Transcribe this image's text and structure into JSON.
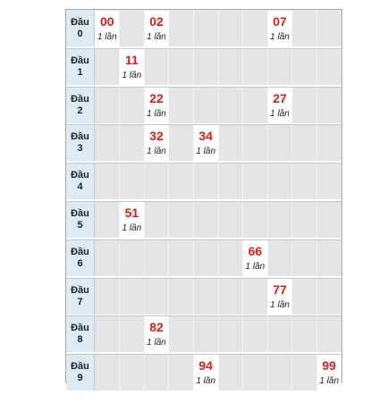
{
  "heads": [
    {
      "label": "Đầu",
      "digit": "0"
    },
    {
      "label": "Đầu",
      "digit": "1"
    },
    {
      "label": "Đầu",
      "digit": "2"
    },
    {
      "label": "Đầu",
      "digit": "3"
    },
    {
      "label": "Đầu",
      "digit": "4"
    },
    {
      "label": "Đầu",
      "digit": "5"
    },
    {
      "label": "Đầu",
      "digit": "6"
    },
    {
      "label": "Đầu",
      "digit": "7"
    },
    {
      "label": "Đầu",
      "digit": "8"
    },
    {
      "label": "Đầu",
      "digit": "9"
    }
  ],
  "cells": [
    {
      "row": 0,
      "col": 0,
      "number": "00",
      "count": "1 lần"
    },
    {
      "row": 0,
      "col": 2,
      "number": "02",
      "count": "1 lần"
    },
    {
      "row": 0,
      "col": 7,
      "number": "07",
      "count": "1 lần"
    },
    {
      "row": 1,
      "col": 1,
      "number": "11",
      "count": "1 lần"
    },
    {
      "row": 2,
      "col": 2,
      "number": "22",
      "count": "1 lần"
    },
    {
      "row": 2,
      "col": 7,
      "number": "27",
      "count": "1 lần"
    },
    {
      "row": 3,
      "col": 2,
      "number": "32",
      "count": "1 lần"
    },
    {
      "row": 3,
      "col": 4,
      "number": "34",
      "count": "1 lần"
    },
    {
      "row": 5,
      "col": 1,
      "number": "51",
      "count": "1 lần"
    },
    {
      "row": 6,
      "col": 6,
      "number": "66",
      "count": "1 lần"
    },
    {
      "row": 7,
      "col": 7,
      "number": "77",
      "count": "1 lần"
    },
    {
      "row": 8,
      "col": 2,
      "number": "82",
      "count": "1 lần"
    },
    {
      "row": 9,
      "col": 4,
      "number": "94",
      "count": "1 lần"
    },
    {
      "row": 9,
      "col": 9,
      "number": "99",
      "count": "1 lần"
    }
  ],
  "colors": {
    "number": "#e01b1b",
    "head_background": "#dcebf6",
    "empty_cell": "#e5e5e5",
    "filled_cell": "#ffffff"
  }
}
